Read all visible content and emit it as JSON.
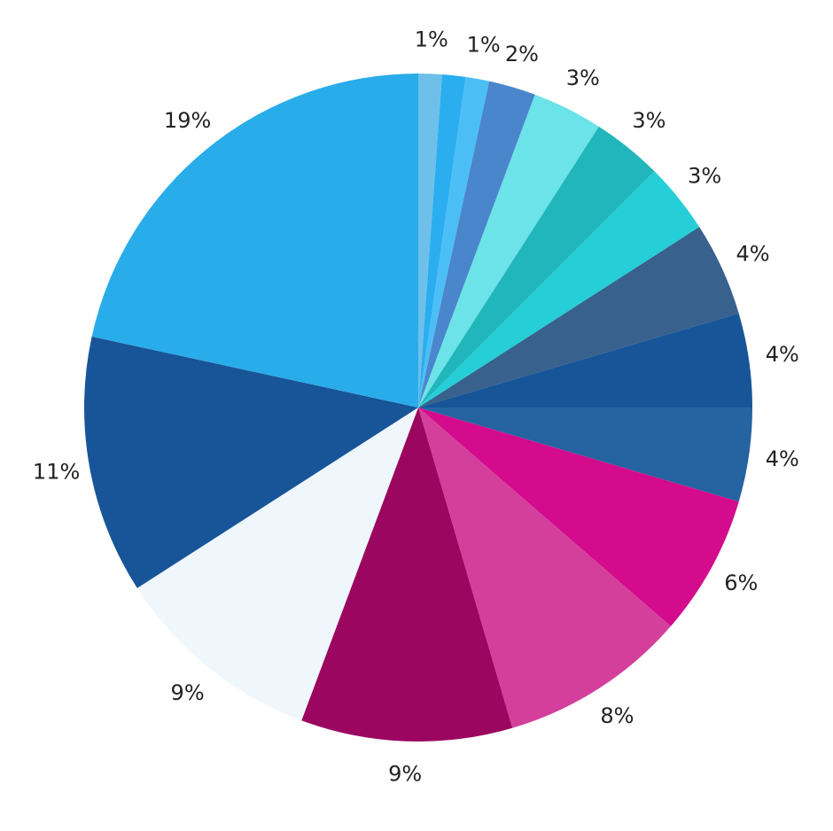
{
  "chart_data": {
    "type": "pie",
    "values": [
      1,
      1,
      1,
      2,
      3,
      3,
      3,
      4,
      4,
      4,
      6,
      8,
      9,
      9,
      11,
      19
    ],
    "value_labels": [
      "1%",
      null,
      "1%",
      "2%",
      "3%",
      "3%",
      "3%",
      "4%",
      "4%",
      "4%",
      "6%",
      "8%",
      "9%",
      "9%",
      "11%",
      "19%"
    ],
    "colors": [
      "#6ec0ea",
      "#2aaef0",
      "#4cbef6",
      "#4a86cc",
      "#6be3e8",
      "#20b6bb",
      "#26ced8",
      "#38618d",
      "#185598",
      "#2563a1",
      "#d40b8c",
      "#d43f9c",
      "#9b0660",
      "#eff7fd",
      "#185598",
      "#29acea"
    ]
  }
}
